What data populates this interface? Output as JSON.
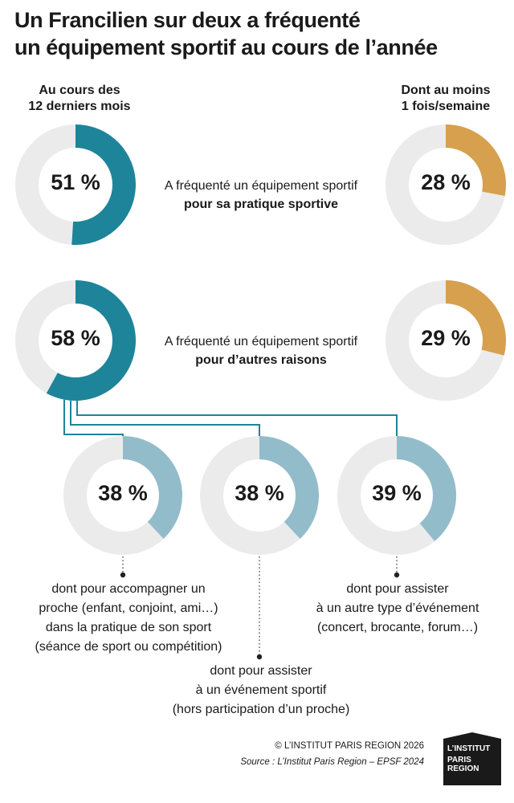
{
  "title_line1": "Un Francilien sur deux a fréquenté",
  "title_line2": "un équipement sportif au cours de l’année",
  "columns": {
    "left_line1": "Au cours des",
    "left_line2": "12 derniers mois",
    "right_line1": "Dont au moins",
    "right_line2": "1 fois/semaine"
  },
  "rows": [
    {
      "desc_line1": "A fréquenté un équipement sportif",
      "desc_line2": "pour sa pratique sportive",
      "year_label": "51 %",
      "week_label": "28 %"
    },
    {
      "desc_line1": "A fréquenté un équipement sportif",
      "desc_line2": "pour d’autres raisons",
      "year_label": "58 %",
      "week_label": "29 %"
    }
  ],
  "sub": [
    {
      "label": "38 %",
      "note": [
        "dont pour accompagner un",
        "proche (enfant, conjoint, ami…)",
        "dans la pratique de son sport",
        "(séance de sport ou compétition)"
      ]
    },
    {
      "label": "38 %",
      "note": [
        "dont pour assister",
        "à un événement sportif",
        "(hors participation d’un proche)"
      ]
    },
    {
      "label": "39 %",
      "note": [
        "dont pour assister",
        "à un autre type d’événement",
        "(concert, brocante, forum…)"
      ]
    }
  ],
  "credit": "© L’INSTITUT PARIS REGION 2026",
  "source": "Source : L’Institut Paris Region – EPSF 2024",
  "logo": [
    "L’INSTITUT",
    "PARIS",
    "REGION"
  ],
  "colors": {
    "teal": "#1e8499",
    "orange": "#d6a04e",
    "light_blue": "#93bccb",
    "track": "#ebebeb"
  },
  "chart_data": {
    "type": "donut",
    "title": "Un Francilien sur deux a fréquenté un équipement sportif au cours de l’année",
    "categories": [
      "pour sa pratique sportive",
      "pour d’autres raisons"
    ],
    "series": [
      {
        "name": "Au cours des 12 derniers mois",
        "values": [
          51,
          58
        ]
      },
      {
        "name": "Dont au moins 1 fois/semaine",
        "values": [
          28,
          29
        ]
      }
    ],
    "sub_breakdown": {
      "categories": [
        "accompagner un proche",
        "assister à un événement sportif",
        "assister à un autre type d’événement"
      ],
      "values": [
        38,
        38,
        39
      ]
    },
    "unit": "%"
  }
}
